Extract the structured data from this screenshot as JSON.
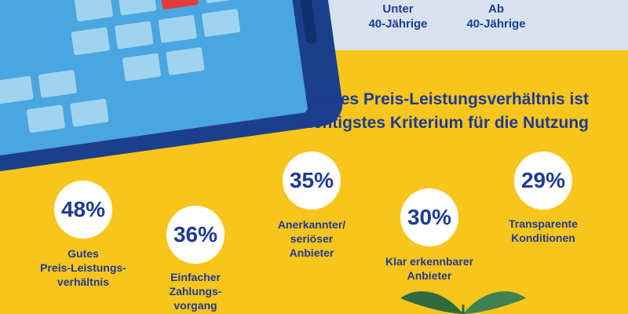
{
  "age_groups": [
    {
      "lines": [
        "Unter",
        "40-Jährige"
      ]
    },
    {
      "lines": [
        "Ab",
        "40-Jährige"
      ]
    }
  ],
  "headline": {
    "line1": "Gutes Preis-Leistungsverhältnis ist",
    "line2": "wichtigstes Kriterium für die Nutzung"
  },
  "stats": [
    {
      "value": "48%",
      "label_lines": [
        "Gutes",
        "Preis-Leistungs-",
        "verhältnis"
      ]
    },
    {
      "value": "36%",
      "label_lines": [
        "Einfacher",
        "Zahlungs-",
        "vorgang"
      ]
    },
    {
      "value": "35%",
      "label_lines": [
        "Anerkannter/",
        "seriöser",
        "Anbieter"
      ]
    },
    {
      "value": "30%",
      "label_lines": [
        "Klar erkennbarer",
        "Anbieter"
      ]
    },
    {
      "value": "29%",
      "label_lines": [
        "Transparente",
        "Konditionen"
      ]
    }
  ],
  "colors": {
    "background": "#f7c51c",
    "top_band": "#d7e2ee",
    "text": "#1f3a93",
    "phone_body": "#1c3f8c",
    "phone_screen": "#4aa6e0",
    "app_tile": "#9fd4ef",
    "highlight_tile": "#e23b3b",
    "leaf": "#2e6b3c"
  },
  "icons": [
    "smartphone-illustration",
    "leaf-plant-illustration"
  ]
}
